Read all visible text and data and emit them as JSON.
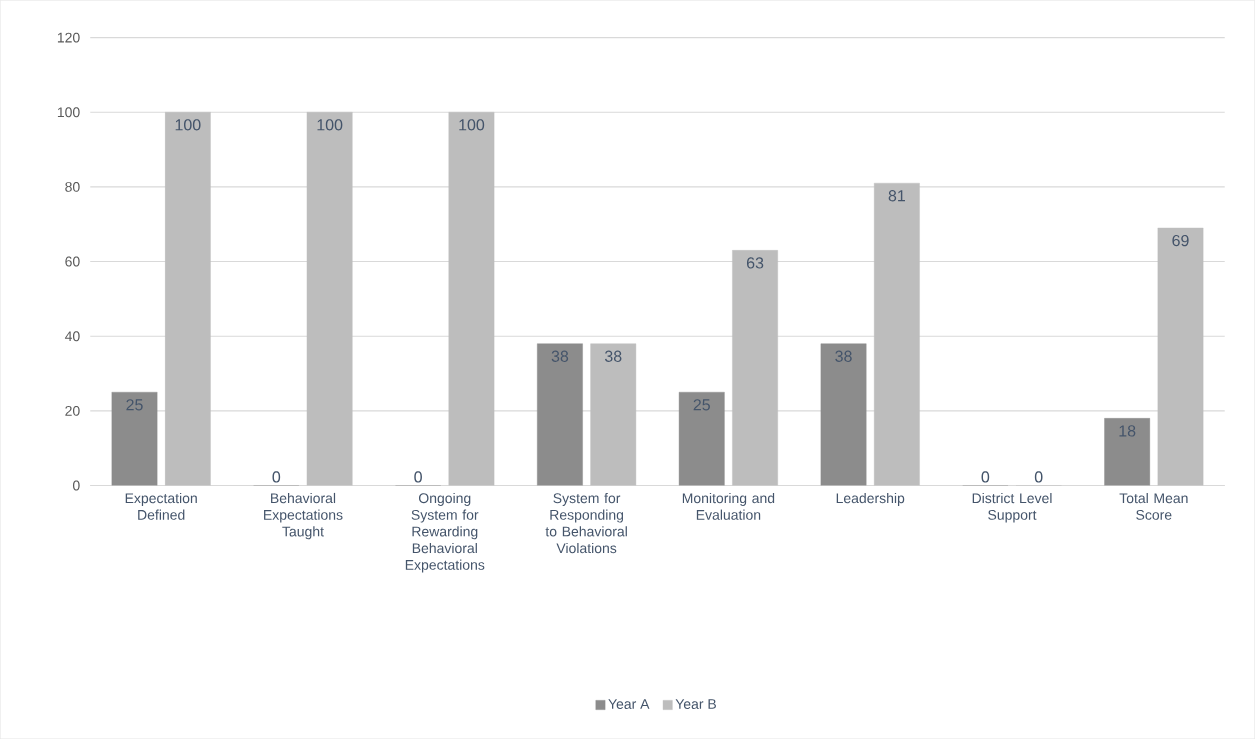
{
  "chart_data": {
    "type": "bar",
    "categories": [
      "Expectation Defined",
      "Behavioral Expectations Taught",
      "Ongoing System for Rewarding Behavioral Expectations",
      "System for Responding to Behavioral Violations",
      "Monitoring and Evaluation",
      "Leadership",
      "District Level Support",
      "Total Mean Score"
    ],
    "series": [
      {
        "name": "Year A",
        "color": "#8c8c8c",
        "values": [
          25,
          0,
          0,
          38,
          25,
          38,
          0,
          18
        ]
      },
      {
        "name": "Year B",
        "color": "#bdbdbd",
        "values": [
          100,
          100,
          100,
          38,
          63,
          81,
          0,
          69
        ]
      }
    ],
    "ylim": [
      0,
      120
    ],
    "yticks": [
      0,
      20,
      40,
      60,
      80,
      100,
      120
    ],
    "grid": "y",
    "legend": "bottom",
    "data_labels": true
  }
}
